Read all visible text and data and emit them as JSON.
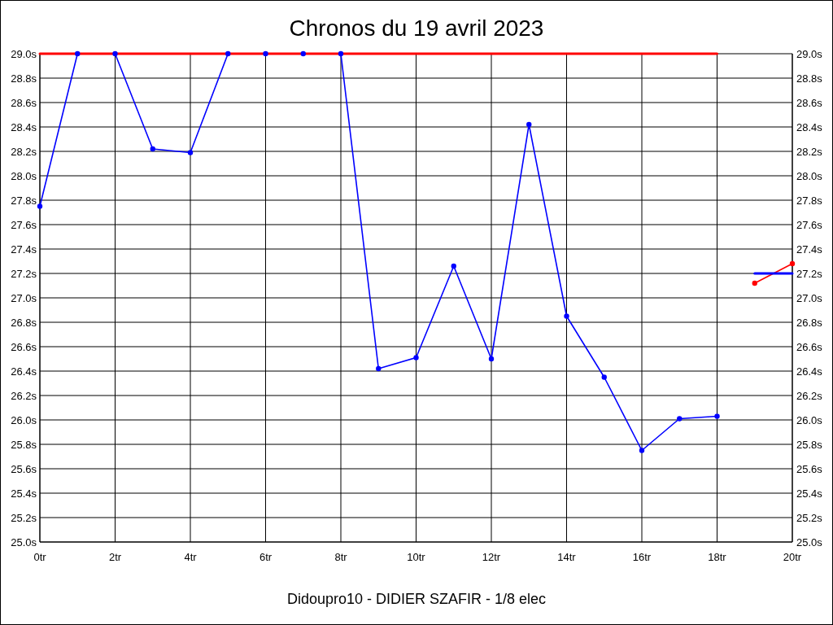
{
  "chart_data": {
    "type": "line",
    "title": "Chronos du 19 avril 2023",
    "annotations": [
      "Didoupro10 - DIDIER SZAFIR - 1/8 elec"
    ],
    "x": [
      0,
      1,
      2,
      3,
      4,
      5,
      6,
      7,
      8,
      9,
      10,
      11,
      12,
      13,
      14,
      15,
      16,
      17,
      18
    ],
    "series": [
      {
        "color": "#0000ff",
        "values": [
          27.75,
          29.0,
          29.0,
          28.22,
          28.19,
          29.0,
          29.0,
          29.0,
          29.0,
          26.42,
          26.51,
          27.26,
          26.5,
          28.42,
          26.85,
          26.35,
          25.75,
          26.01,
          26.03
        ]
      },
      {
        "color": "#ff0000",
        "x": [
          0,
          18
        ],
        "values": [
          29.0,
          29.0
        ],
        "marker": "none"
      },
      {
        "color": "#ff0000",
        "x": [
          19,
          20
        ],
        "values": [
          27.12,
          27.28
        ]
      },
      {
        "color": "#0000ff",
        "x": [
          19,
          20
        ],
        "values": [
          27.2,
          27.2
        ],
        "marker": "none"
      }
    ],
    "xlim": [
      0,
      20
    ],
    "xticks": [
      {
        "value": 0,
        "label": "0tr"
      },
      {
        "value": 2,
        "label": "2tr"
      },
      {
        "value": 4,
        "label": "4tr"
      },
      {
        "value": 6,
        "label": "6tr"
      },
      {
        "value": 8,
        "label": "8tr"
      },
      {
        "value": 10,
        "label": "10tr"
      },
      {
        "value": 12,
        "label": "12tr"
      },
      {
        "value": 14,
        "label": "14tr"
      },
      {
        "value": 16,
        "label": "16tr"
      },
      {
        "value": 18,
        "label": "18tr"
      },
      {
        "value": 20,
        "label": "20tr"
      }
    ],
    "ylim": [
      25,
      29
    ],
    "yticks": [
      {
        "value": 25,
        "label": "25.0s"
      },
      {
        "value": 25.2,
        "label": "25.2s"
      },
      {
        "value": 25.4,
        "label": "25.4s"
      },
      {
        "value": 25.6,
        "label": "25.6s"
      },
      {
        "value": 25.8,
        "label": "25.8s"
      },
      {
        "value": 26,
        "label": "26.0s"
      },
      {
        "value": 26.2,
        "label": "26.2s"
      },
      {
        "value": 26.4,
        "label": "26.4s"
      },
      {
        "value": 26.6,
        "label": "26.6s"
      },
      {
        "value": 26.8,
        "label": "26.8s"
      },
      {
        "value": 27,
        "label": "27.0s"
      },
      {
        "value": 27.2,
        "label": "27.2s"
      },
      {
        "value": 27.4,
        "label": "27.4s"
      },
      {
        "value": 27.6,
        "label": "27.6s"
      },
      {
        "value": 27.8,
        "label": "27.8s"
      },
      {
        "value": 28,
        "label": "28.0s"
      },
      {
        "value": 28.2,
        "label": "28.2s"
      },
      {
        "value": 28.4,
        "label": "28.4s"
      },
      {
        "value": 28.6,
        "label": "28.6s"
      },
      {
        "value": 28.8,
        "label": "28.8s"
      },
      {
        "value": 29,
        "label": "29.0s"
      }
    ],
    "y2lim": [
      25,
      29
    ],
    "y2ticks": [
      {
        "value": 25,
        "label": "25.0s"
      },
      {
        "value": 25.2,
        "label": "25.2s"
      },
      {
        "value": 25.4,
        "label": "25.4s"
      },
      {
        "value": 25.6,
        "label": "25.6s"
      },
      {
        "value": 25.8,
        "label": "25.8s"
      },
      {
        "value": 26,
        "label": "26.0s"
      },
      {
        "value": 26.2,
        "label": "26.2s"
      },
      {
        "value": 26.4,
        "label": "26.4s"
      },
      {
        "value": 26.6,
        "label": "26.6s"
      },
      {
        "value": 26.8,
        "label": "26.8s"
      },
      {
        "value": 27,
        "label": "27.0s"
      },
      {
        "value": 27.2,
        "label": "27.2s"
      },
      {
        "value": 27.4,
        "label": "27.4s"
      },
      {
        "value": 27.6,
        "label": "27.6s"
      },
      {
        "value": 27.8,
        "label": "27.8s"
      },
      {
        "value": 28,
        "label": "28.0s"
      },
      {
        "value": 28.2,
        "label": "28.2s"
      },
      {
        "value": 28.4,
        "label": "28.4s"
      },
      {
        "value": 28.6,
        "label": "28.6s"
      },
      {
        "value": 28.8,
        "label": "28.8s"
      },
      {
        "value": 29,
        "label": "29.0s"
      }
    ],
    "grid": true,
    "marker": "circle",
    "line_style": "solid"
  }
}
